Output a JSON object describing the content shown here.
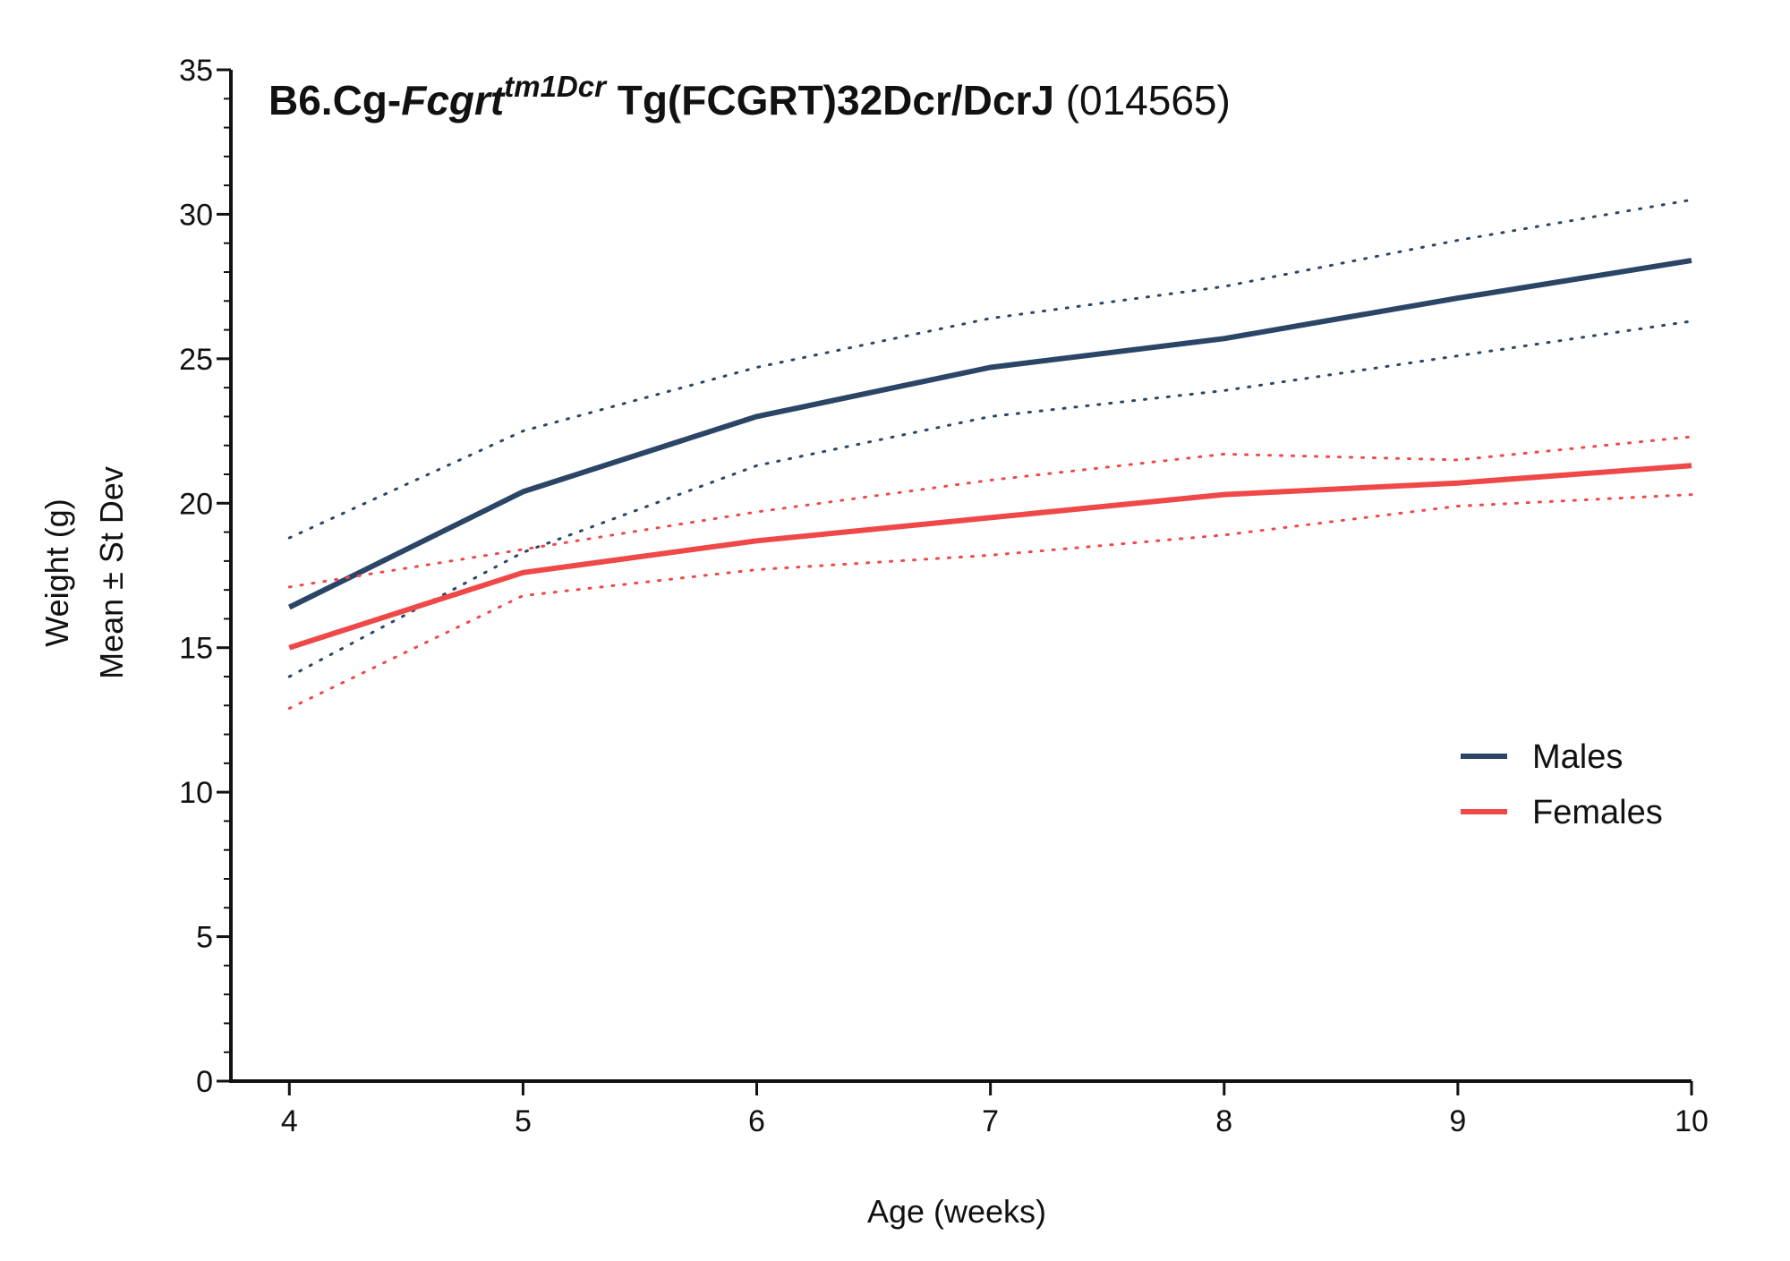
{
  "chart_data": {
    "type": "line",
    "title": {
      "prefix": "B6.Cg-",
      "gene": "Fcgrt",
      "allele": "tm1Dcr",
      "suffix": " Tg(FCGRT)32Dcr/DcrJ",
      "stock": " (014565)"
    },
    "xlabel": "Age (weeks)",
    "ylabel": [
      "Weight (g)",
      "Mean ± St Dev"
    ],
    "x": [
      4,
      5,
      6,
      7,
      8,
      9,
      10
    ],
    "xlim": [
      3.75,
      10
    ],
    "ylim": [
      0,
      35
    ],
    "x_ticks": [
      "4",
      "5",
      "6",
      "7",
      "8",
      "9",
      "10"
    ],
    "y_ticks": [
      "0",
      "5",
      "10",
      "15",
      "20",
      "25",
      "30",
      "35"
    ],
    "grid": false,
    "legend_position": "right",
    "series": [
      {
        "name": "Males",
        "color": "#2b4566",
        "mean": [
          16.4,
          20.4,
          23.0,
          24.7,
          25.7,
          27.1,
          28.4
        ],
        "upper": [
          18.8,
          22.5,
          24.7,
          26.4,
          27.5,
          29.1,
          30.5
        ],
        "lower": [
          14.0,
          18.3,
          21.3,
          23.0,
          23.9,
          25.1,
          26.3
        ]
      },
      {
        "name": "Females",
        "color": "#ef4848",
        "mean": [
          15.0,
          17.6,
          18.7,
          19.5,
          20.3,
          20.7,
          21.3
        ],
        "upper": [
          17.1,
          18.4,
          19.7,
          20.8,
          21.7,
          21.5,
          22.3
        ],
        "lower": [
          12.9,
          16.8,
          17.7,
          18.2,
          18.9,
          19.9,
          20.3
        ]
      }
    ]
  }
}
